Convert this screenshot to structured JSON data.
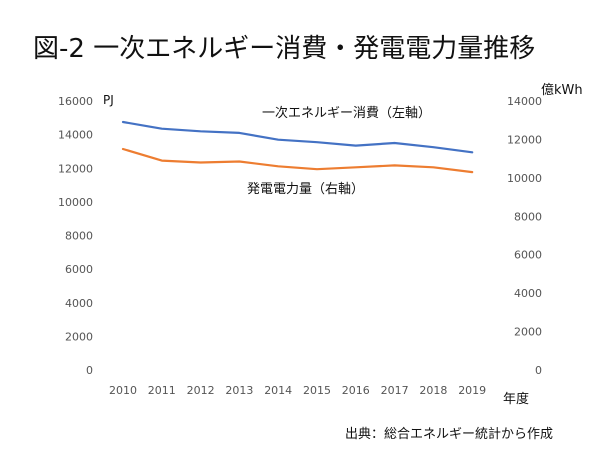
{
  "title": "図-2 一次エネルギー消費・発電電力量推移",
  "left_unit": "PJ",
  "right_unit": "億kWh",
  "x_unit": "年度",
  "source": "出典：総合エネルギー統計から作成",
  "chart_data": {
    "type": "line",
    "x": [
      2010,
      2011,
      2012,
      2013,
      2014,
      2015,
      2016,
      2017,
      2018,
      2019
    ],
    "y_left": {
      "ticks": [
        0,
        2000,
        4000,
        6000,
        8000,
        10000,
        12000,
        14000,
        16000
      ],
      "ylim": [
        0,
        16000
      ]
    },
    "y_right": {
      "ticks": [
        0,
        2000,
        4000,
        6000,
        8000,
        10000,
        12000,
        14000
      ],
      "ylim": [
        0,
        14000
      ]
    },
    "series": [
      {
        "name": "一次エネルギー消費（左軸）",
        "axis": "left",
        "color": "#4472c4",
        "values": [
          14750,
          14350,
          14200,
          14100,
          13700,
          13550,
          13350,
          13500,
          13250,
          12950
        ]
      },
      {
        "name": "発電電力量（右軸）",
        "axis": "right",
        "color": "#ed7d31",
        "values": [
          11500,
          10900,
          10800,
          10850,
          10600,
          10450,
          10550,
          10650,
          10550,
          10300
        ]
      }
    ]
  }
}
